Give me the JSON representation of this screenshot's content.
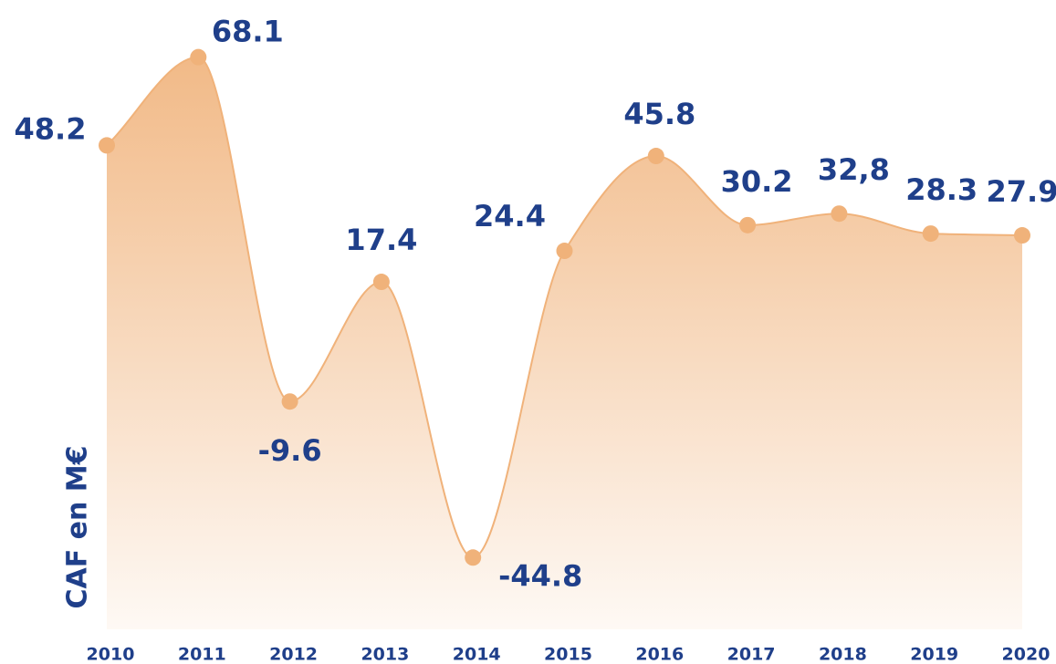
{
  "chart_data": {
    "type": "area",
    "y_label": "CAF en M€",
    "categories": [
      "2010",
      "2011",
      "2012",
      "2013",
      "2014",
      "2015",
      "2016",
      "2017",
      "2018",
      "2019",
      "2020"
    ],
    "values": [
      48.2,
      68.1,
      -9.6,
      17.4,
      -44.8,
      24.4,
      45.8,
      30.2,
      32.8,
      28.3,
      27.9
    ],
    "value_labels": [
      "48.2",
      "68.1",
      "-9.6",
      "17.4",
      "-44.8",
      "24.4",
      "45.8",
      "30.2",
      "32,8",
      "28.3",
      "27.9"
    ],
    "color": "#f0b27a",
    "ylim": [
      -61,
      81
    ]
  }
}
